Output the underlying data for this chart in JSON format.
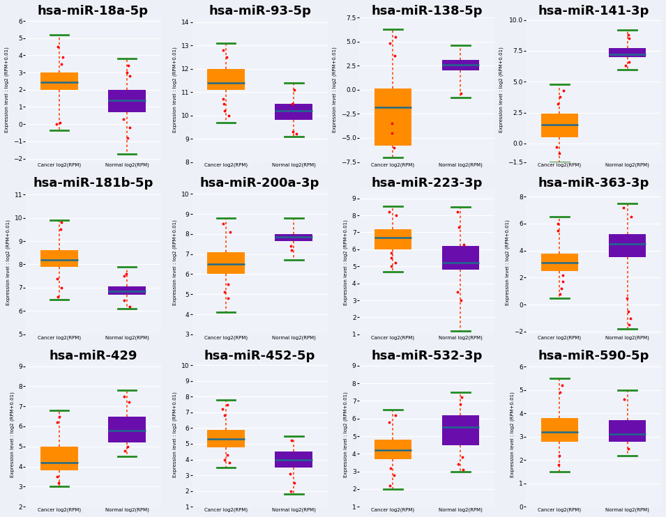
{
  "plots": [
    {
      "title": "hsa-miR-18a-5p",
      "cancer": {
        "whislo": -0.35,
        "q1": 2.0,
        "med": 2.45,
        "q3": 3.0,
        "whishi": 5.2,
        "fliers": [
          4.5,
          3.9,
          3.5,
          0.1,
          0.0
        ]
      },
      "normal": {
        "whislo": -1.75,
        "q1": 0.7,
        "med": 1.4,
        "q3": 2.0,
        "whishi": 3.8,
        "fliers": [
          3.4,
          3.0,
          2.8,
          0.3,
          -0.2,
          -0.8
        ]
      },
      "ylim": [
        -2.2,
        6.2
      ],
      "yticks": [
        -2,
        -1,
        0,
        1,
        2,
        3,
        4,
        5,
        6
      ]
    },
    {
      "title": "hsa-miR-93-5p",
      "cancer": {
        "whislo": 9.7,
        "q1": 11.1,
        "med": 11.4,
        "q3": 12.0,
        "whishi": 13.1,
        "fliers": [
          12.8,
          12.5,
          10.7,
          10.5,
          10.2,
          10.0
        ]
      },
      "normal": {
        "whislo": 9.1,
        "q1": 9.8,
        "med": 10.2,
        "q3": 10.5,
        "whishi": 11.4,
        "fliers": [
          11.1,
          10.5,
          9.3,
          9.2
        ]
      },
      "ylim": [
        8.0,
        14.2
      ],
      "yticks": [
        8,
        9,
        10,
        11,
        12,
        13,
        14
      ]
    },
    {
      "title": "hsa-miR-138-5p",
      "cancer": {
        "whislo": -7.0,
        "q1": -5.8,
        "med": -1.8,
        "q3": 0.1,
        "whishi": 6.3,
        "fliers": [
          5.5,
          4.8,
          3.5,
          -4.5,
          -3.5,
          -6.0
        ]
      },
      "normal": {
        "whislo": -0.8,
        "q1": 2.0,
        "med": 2.6,
        "q3": 3.1,
        "whishi": 4.6,
        "fliers": [
          -0.4
        ]
      },
      "ylim": [
        -7.5,
        7.5
      ],
      "yticks": [
        -7.5,
        -5,
        -2.5,
        0,
        2.5,
        5,
        7.5
      ]
    },
    {
      "title": "hsa-miR-141-3p",
      "cancer": {
        "whislo": -1.5,
        "q1": 0.5,
        "med": 1.5,
        "q3": 2.4,
        "whishi": 4.8,
        "fliers": [
          4.3,
          3.8,
          3.2,
          -0.3,
          -0.8
        ]
      },
      "normal": {
        "whislo": 6.0,
        "q1": 7.0,
        "med": 7.2,
        "q3": 7.7,
        "whishi": 9.2,
        "fliers": [
          8.8,
          8.5,
          6.3,
          6.6
        ]
      },
      "ylim": [
        -1.5,
        10.2
      ],
      "yticks": [
        -1.5,
        0,
        2.5,
        5,
        7.5,
        10
      ]
    },
    {
      "title": "hsa-miR-181b-5p",
      "cancer": {
        "whislo": 6.5,
        "q1": 7.9,
        "med": 8.2,
        "q3": 8.6,
        "whishi": 9.9,
        "fliers": [
          9.8,
          9.5,
          7.4,
          7.0,
          6.6
        ]
      },
      "normal": {
        "whislo": 6.1,
        "q1": 6.7,
        "med": 6.85,
        "q3": 7.05,
        "whishi": 7.9,
        "fliers": [
          7.6,
          7.5,
          6.45,
          6.2
        ]
      },
      "ylim": [
        5.0,
        11.2
      ],
      "yticks": [
        5,
        6,
        7,
        8,
        9,
        10,
        11
      ]
    },
    {
      "title": "hsa-miR-200a-3p",
      "cancer": {
        "whislo": 4.1,
        "q1": 6.0,
        "med": 6.5,
        "q3": 7.1,
        "whishi": 8.8,
        "fliers": [
          8.5,
          8.1,
          5.5,
          5.1,
          4.8
        ]
      },
      "normal": {
        "whislo": 6.7,
        "q1": 7.65,
        "med": 7.85,
        "q3": 8.0,
        "whishi": 8.8,
        "fliers": [
          7.4,
          7.2
        ]
      },
      "ylim": [
        3.0,
        10.2
      ],
      "yticks": [
        3,
        4,
        5,
        6,
        7,
        8,
        9,
        10
      ]
    },
    {
      "title": "hsa-miR-223-3p",
      "cancer": {
        "whislo": 4.7,
        "q1": 6.0,
        "med": 6.7,
        "q3": 7.2,
        "whishi": 8.55,
        "fliers": [
          8.2,
          8.0,
          5.8,
          5.5,
          5.2,
          5.0
        ]
      },
      "normal": {
        "whislo": 1.2,
        "q1": 4.8,
        "med": 5.2,
        "q3": 6.2,
        "whishi": 8.5,
        "fliers": [
          8.2,
          7.3,
          6.3,
          3.5,
          3.0
        ]
      },
      "ylim": [
        1.0,
        9.5
      ],
      "yticks": [
        1,
        2,
        3,
        4,
        5,
        6,
        7,
        8,
        9
      ]
    },
    {
      "title": "hsa-miR-363-3p",
      "cancer": {
        "whislo": 0.5,
        "q1": 2.5,
        "med": 3.1,
        "q3": 3.8,
        "whishi": 6.5,
        "fliers": [
          6.0,
          5.5,
          2.2,
          1.7,
          1.2,
          0.8
        ]
      },
      "normal": {
        "whislo": -1.8,
        "q1": 3.5,
        "med": 4.5,
        "q3": 5.2,
        "whishi": 7.5,
        "fliers": [
          7.2,
          6.5,
          0.5,
          -0.5,
          -1.0,
          -1.5
        ]
      },
      "ylim": [
        -2.2,
        8.5
      ],
      "yticks": [
        -2,
        0,
        2,
        4,
        6,
        8
      ]
    },
    {
      "title": "hsa-miR-429",
      "cancer": {
        "whislo": 3.0,
        "q1": 3.8,
        "med": 4.2,
        "q3": 5.0,
        "whishi": 6.8,
        "fliers": [
          6.5,
          6.2,
          3.5,
          3.2
        ]
      },
      "normal": {
        "whislo": 4.5,
        "q1": 5.2,
        "med": 5.8,
        "q3": 6.5,
        "whishi": 7.8,
        "fliers": [
          7.5,
          7.2,
          5.0,
          4.8
        ]
      },
      "ylim": [
        2.0,
        9.2
      ],
      "yticks": [
        2,
        3,
        4,
        5,
        6,
        7,
        8,
        9
      ]
    },
    {
      "title": "hsa-miR-452-5p",
      "cancer": {
        "whislo": 3.5,
        "q1": 4.8,
        "med": 5.3,
        "q3": 5.9,
        "whishi": 7.8,
        "fliers": [
          7.5,
          7.2,
          6.8,
          4.3,
          4.0,
          3.8
        ]
      },
      "normal": {
        "whislo": 1.8,
        "q1": 3.5,
        "med": 4.0,
        "q3": 4.5,
        "whishi": 5.5,
        "fliers": [
          5.2,
          3.1,
          2.5,
          2.0
        ]
      },
      "ylim": [
        1.0,
        10.2
      ],
      "yticks": [
        1,
        2,
        3,
        4,
        5,
        6,
        7,
        8,
        9,
        10
      ]
    },
    {
      "title": "hsa-miR-532-3p",
      "cancer": {
        "whislo": 2.0,
        "q1": 3.7,
        "med": 4.2,
        "q3": 4.8,
        "whishi": 6.5,
        "fliers": [
          6.2,
          5.8,
          3.2,
          2.8,
          2.2
        ]
      },
      "normal": {
        "whislo": 3.0,
        "q1": 4.5,
        "med": 5.5,
        "q3": 6.2,
        "whishi": 7.5,
        "fliers": [
          7.2,
          6.8,
          3.8,
          3.4,
          3.1
        ]
      },
      "ylim": [
        1.0,
        9.2
      ],
      "yticks": [
        1,
        2,
        3,
        4,
        5,
        6,
        7,
        8,
        9
      ]
    },
    {
      "title": "hsa-miR-590-5p",
      "cancer": {
        "whislo": 1.5,
        "q1": 2.8,
        "med": 3.2,
        "q3": 3.8,
        "whishi": 5.5,
        "fliers": [
          5.2,
          4.9,
          2.2,
          1.8
        ]
      },
      "normal": {
        "whislo": 2.2,
        "q1": 2.8,
        "med": 3.1,
        "q3": 3.7,
        "whishi": 5.0,
        "fliers": [
          4.6,
          2.5
        ]
      },
      "ylim": [
        0.5,
        6.2
      ],
      "yticks": [
        0,
        1,
        2,
        3,
        4,
        5,
        6
      ]
    }
  ],
  "cancer_color": "#FF8C00",
  "normal_color": "#6A0DAD",
  "median_color": "#1E6B8C",
  "cap_color": "#228B22",
  "flier_color": "#FF0000",
  "whisker_color": "#FF4500",
  "bg_color": "#EEF0F8",
  "plot_bg_color": "#F0F2FA",
  "ylabel": "Expression level : log2 (RPM+0.01)",
  "xlabel_cancer": "Cancer log2(RPM)",
  "xlabel_normal": "Normal log2(RPM)",
  "title_fontsize": 13,
  "label_fontsize": 5.0,
  "tick_fontsize": 6.5,
  "box_width": 0.55
}
